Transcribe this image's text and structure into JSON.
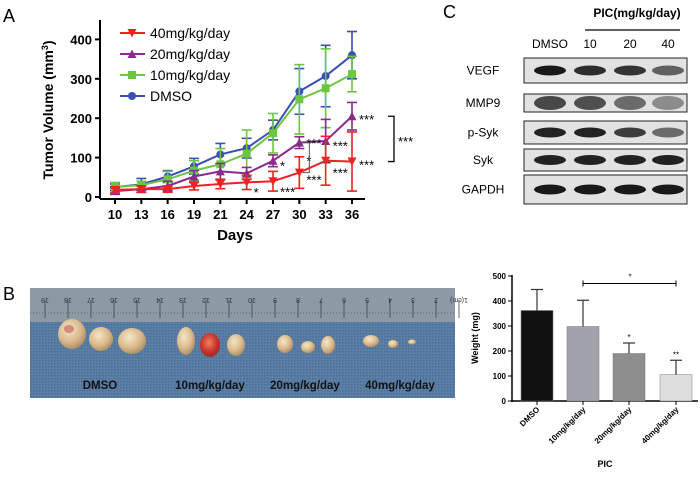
{
  "panels": {
    "a": "A",
    "b": "B",
    "c": "C"
  },
  "chart_data": [
    {
      "type": "line",
      "panel": "A",
      "xlabel": "Days",
      "ylabel": "Tumor Volume (mm",
      "ylabel_sup": "3",
      "ylabel_close": ")",
      "x": [
        10,
        13,
        16,
        19,
        21,
        24,
        27,
        30,
        33,
        36
      ],
      "ylim": [
        0,
        450
      ],
      "yticks": [
        0,
        100,
        200,
        300,
        400
      ],
      "legend_position": "top-left",
      "series": [
        {
          "name": "40mg/kg/day",
          "color": "#ee2222",
          "marker": "triangle-down",
          "values": [
            18,
            20,
            20,
            28,
            33,
            37,
            40,
            62,
            92,
            90
          ],
          "errors": [
            8,
            8,
            8,
            10,
            12,
            18,
            25,
            40,
            62,
            75
          ]
        },
        {
          "name": "20mg/kg/day",
          "color": "#8b2a8b",
          "marker": "triangle-up",
          "values": [
            15,
            20,
            28,
            52,
            65,
            60,
            92,
            138,
            142,
            205
          ],
          "errors": [
            8,
            8,
            12,
            15,
            20,
            15,
            15,
            15,
            55,
            35
          ]
        },
        {
          "name": "10mg/kg/day",
          "color": "#6cc644",
          "marker": "square",
          "values": [
            25,
            30,
            45,
            67,
            83,
            110,
            162,
            248,
            276,
            312
          ],
          "errors": [
            12,
            10,
            20,
            25,
            40,
            60,
            50,
            88,
            100,
            45
          ]
        },
        {
          "name": "DMSO",
          "color": "#3a4fb0",
          "marker": "circle",
          "values": [
            25,
            32,
            52,
            78,
            108,
            124,
            170,
            268,
            307,
            360
          ],
          "errors": [
            8,
            15,
            15,
            20,
            28,
            25,
            25,
            58,
            78,
            60
          ]
        }
      ],
      "annotations": [
        {
          "day": 24,
          "value": 20,
          "text": "*"
        },
        {
          "day": 27,
          "value": 22,
          "text": "***"
        },
        {
          "day": 27,
          "value": 88,
          "text": "*"
        },
        {
          "day": 30,
          "value": 145,
          "text": "***"
        },
        {
          "day": 30,
          "value": 100,
          "text": "*"
        },
        {
          "day": 30,
          "value": 52,
          "text": "***"
        },
        {
          "day": 33,
          "value": 138,
          "text": "***"
        },
        {
          "day": 33,
          "value": 70,
          "text": "***"
        },
        {
          "day": 36,
          "value": 205,
          "text": "***"
        },
        {
          "day": 36,
          "value": 90,
          "text": "***"
        }
      ],
      "bracket": {
        "from": 205,
        "to": 90,
        "text": "***"
      }
    },
    {
      "type": "bar",
      "panel": "B",
      "xlabel": "PIC",
      "ylabel": "Weight (mg)",
      "categories": [
        "DMSO",
        "10mg/kg/day",
        "20mg/kg/day",
        "40mg/kg/day"
      ],
      "values": [
        362,
        298,
        190,
        105
      ],
      "errors": [
        84,
        105,
        42,
        58
      ],
      "colors": [
        "#111111",
        "#a2a2aa",
        "#8e8e8e",
        "#dedede"
      ],
      "ylim": [
        0,
        500
      ],
      "yticks": [
        0,
        100,
        200,
        300,
        400,
        500
      ],
      "significance": [
        "",
        "",
        "*",
        "**"
      ],
      "bracket": {
        "from": "10mg/kg/day",
        "to": "40mg/kg/day",
        "text": "*"
      }
    }
  ],
  "photo": {
    "ruler_numbers": [
      "19",
      "18",
      "17",
      "16",
      "15",
      "14",
      "13",
      "12",
      "11",
      "10",
      "9",
      "8",
      "7",
      "6",
      "5",
      "4",
      "3",
      "2",
      "1(cm)"
    ],
    "labels": [
      "DMSO",
      "10mg/kg/day",
      "20mg/kg/day",
      "40mg/kg/day"
    ]
  },
  "blot": {
    "header": "PIC(mg/kg/day)",
    "lanes": [
      "DMSO",
      "10",
      "20",
      "40"
    ],
    "rows": [
      {
        "label": "VEGF",
        "intensity": [
          0.95,
          0.85,
          0.8,
          0.55
        ]
      },
      {
        "label": "MMP9",
        "intensity": [
          0.7,
          0.65,
          0.5,
          0.3
        ]
      },
      {
        "label": "p-Syk",
        "intensity": [
          0.9,
          0.9,
          0.75,
          0.5
        ]
      },
      {
        "label": "Syk",
        "intensity": [
          0.9,
          0.9,
          0.9,
          0.9
        ]
      },
      {
        "label": "GAPDH",
        "intensity": [
          0.95,
          0.95,
          0.95,
          0.95
        ]
      }
    ]
  }
}
